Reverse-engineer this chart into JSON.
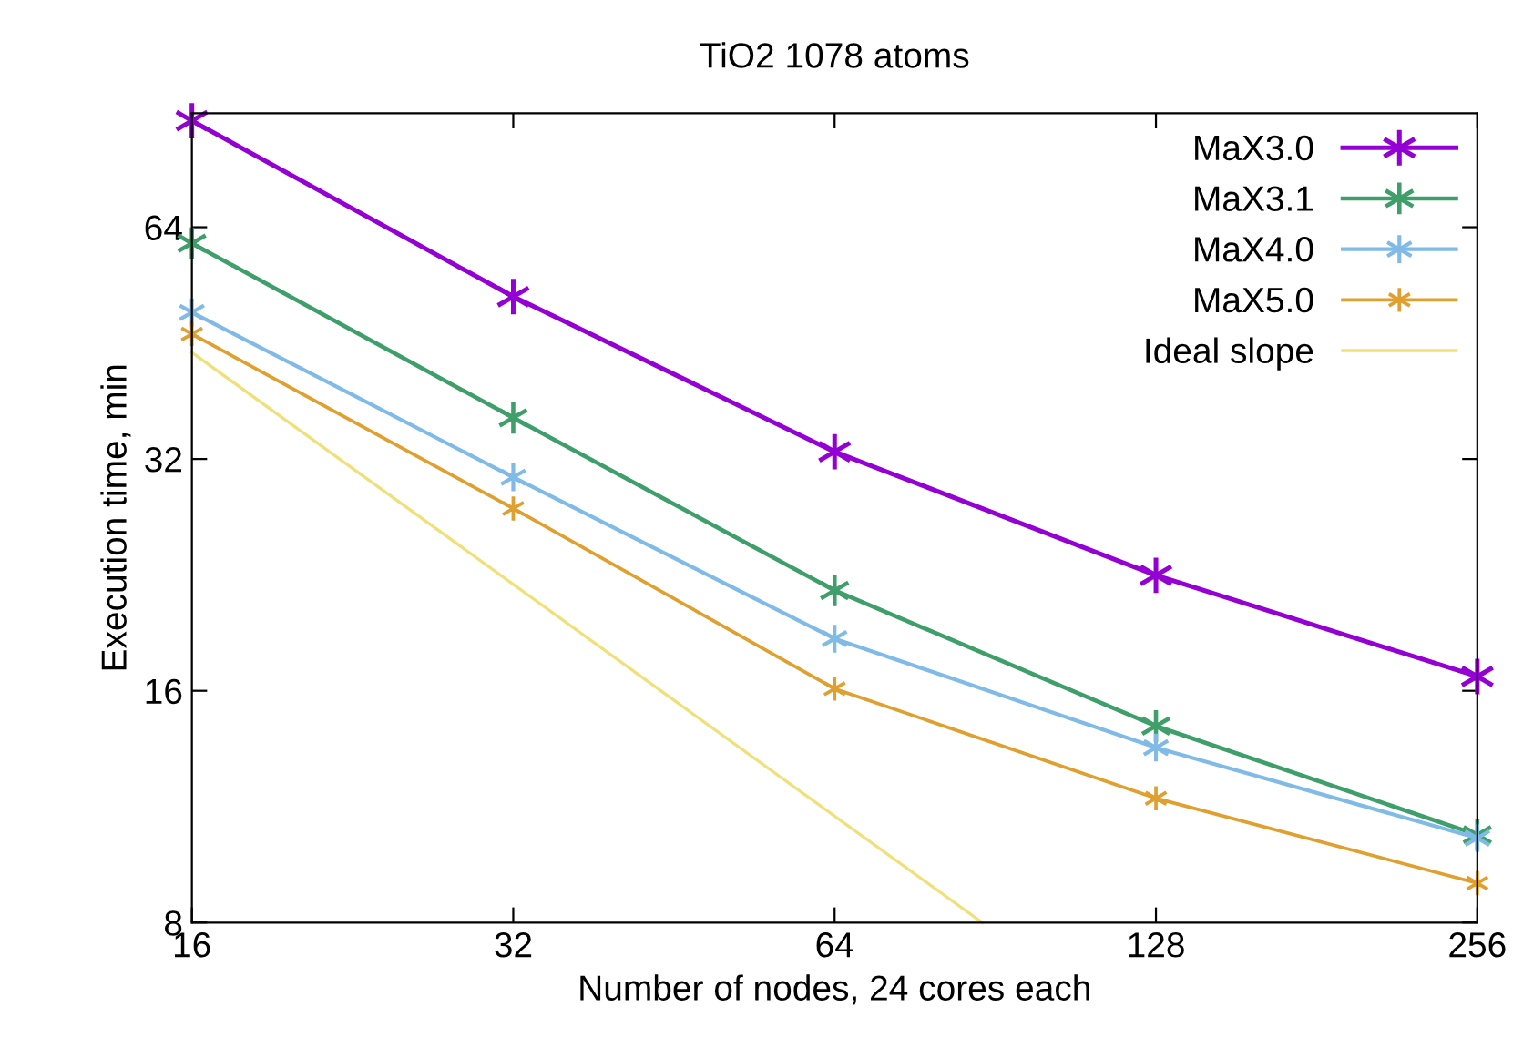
{
  "chart_data": {
    "type": "line",
    "title": "TiO2 1078 atoms",
    "xlabel": "Number of nodes, 24 cores each",
    "ylabel": "Execution time, min",
    "x": [
      16,
      32,
      64,
      128,
      256
    ],
    "log": "xy",
    "xlim": [
      16,
      256
    ],
    "xticks": [
      16,
      32,
      64,
      128,
      256
    ],
    "ylim": [
      8,
      90
    ],
    "yticks": [
      8,
      16,
      32,
      64
    ],
    "grid": false,
    "legend": "top right",
    "marker": "cross",
    "series": [
      {
        "name": "MaX3.0",
        "color": "#9400d3",
        "values": [
          88,
          52,
          32.7,
          22.6,
          16.7
        ]
      },
      {
        "name": "MaX3.1",
        "color": "#3f9f6a",
        "values": [
          61,
          36.2,
          21.6,
          14.4,
          10.4
        ]
      },
      {
        "name": "MaX4.0",
        "color": "#7fbbe6",
        "values": [
          49.6,
          30.3,
          18.7,
          13.5,
          10.3
        ]
      },
      {
        "name": "MaX5.0",
        "color": "#e0a030",
        "values": [
          46.5,
          27.6,
          16.1,
          11.6,
          9.0
        ]
      },
      {
        "name": "Ideal slope",
        "color": "#f0e07a",
        "marker": "none",
        "x": [
          16,
          88
        ],
        "values": [
          44,
          8
        ]
      }
    ]
  }
}
